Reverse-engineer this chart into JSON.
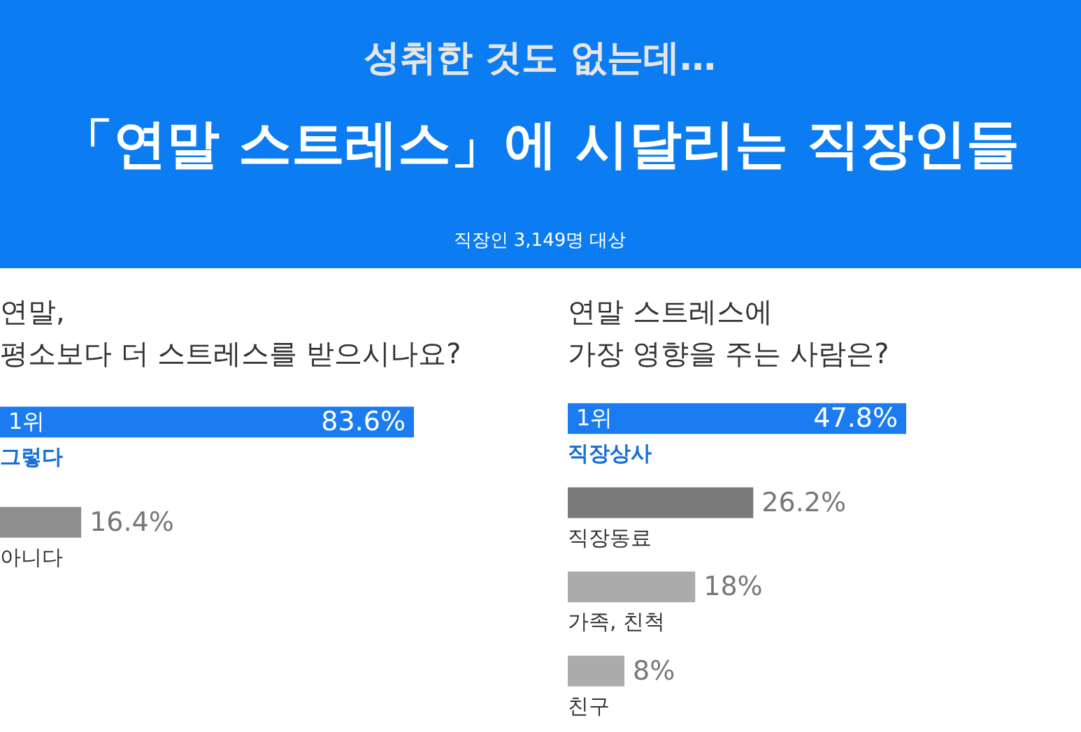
{
  "chart_data": [
    {
      "type": "bar",
      "orientation": "horizontal",
      "title": [
        "연말,",
        "평소보다 더 스트레스를 받으시나요?"
      ],
      "categories": [
        "그렇다",
        "아니다"
      ],
      "values": [
        83.6,
        16.4
      ],
      "value_labels": [
        "83.6%",
        "16.4%"
      ],
      "colors": [
        "#1a7cf0",
        "#8e8e8e"
      ],
      "annotations": [
        "성취한 것도 없는데…",
        "「연말 스트레스」에 시달리는 직장인들",
        "직장인 3,149명 대상",
        "1위"
      ]
    },
    {
      "type": "bar",
      "orientation": "horizontal",
      "title": [
        "연말 스트레스에",
        "가장 영향을 주는 사람은?"
      ],
      "categories": [
        "직장상사",
        "직장동료",
        "가족, 친척",
        "친구"
      ],
      "values": [
        47.8,
        26.2,
        18,
        8
      ],
      "value_labels": [
        "47.8%",
        "26.2%",
        "18%",
        "8%"
      ],
      "colors": [
        "#1a7cf0",
        "#7a7a7a",
        "#ababab",
        "#ababab"
      ],
      "annotations": [
        "1위"
      ]
    }
  ]
}
